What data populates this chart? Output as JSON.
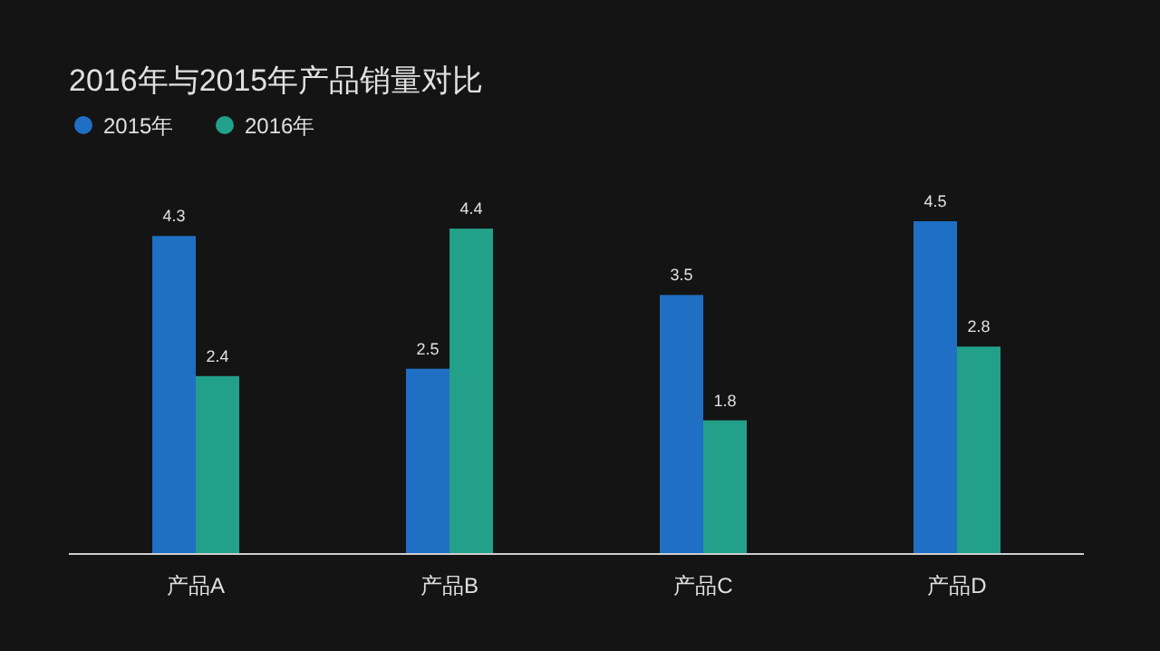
{
  "chart_data": {
    "type": "bar",
    "title": "2016年与2015年产品销量对比",
    "categories": [
      "产品A",
      "产品B",
      "产品C",
      "产品D"
    ],
    "series": [
      {
        "name": "2015年",
        "color": "#1f6fc4",
        "values": [
          4.3,
          2.5,
          3.5,
          4.5
        ]
      },
      {
        "name": "2016年",
        "color": "#22a08a",
        "values": [
          2.4,
          4.4,
          1.8,
          2.8
        ]
      }
    ],
    "data_labels": true,
    "legend": "top left",
    "grid": false
  }
}
